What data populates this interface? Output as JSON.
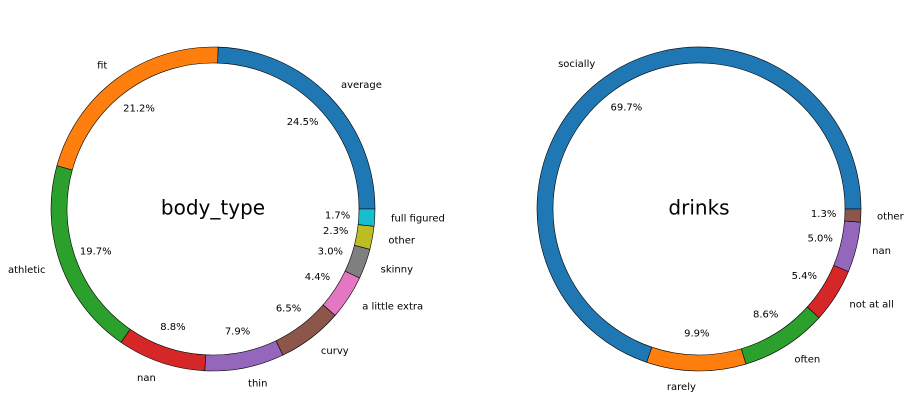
{
  "chart_data": [
    {
      "type": "pie",
      "style": "donut",
      "center_label": "body_type",
      "start_angle": 0,
      "direction": "counterclockwise",
      "slices": [
        {
          "label": "average",
          "value": 24.5,
          "pct_label": "24.5%",
          "color": "#1f77b4"
        },
        {
          "label": "fit",
          "value": 21.2,
          "pct_label": "21.2%",
          "color": "#ff7f0e"
        },
        {
          "label": "athletic",
          "value": 19.7,
          "pct_label": "19.7%",
          "color": "#2ca02c"
        },
        {
          "label": "nan",
          "value": 8.8,
          "pct_label": "8.8%",
          "color": "#d62728"
        },
        {
          "label": "thin",
          "value": 7.9,
          "pct_label": "7.9%",
          "color": "#9467bd"
        },
        {
          "label": "curvy",
          "value": 6.5,
          "pct_label": "6.5%",
          "color": "#8c564b"
        },
        {
          "label": "a little extra",
          "value": 4.4,
          "pct_label": "4.4%",
          "color": "#e377c2"
        },
        {
          "label": "skinny",
          "value": 3.0,
          "pct_label": "3.0%",
          "color": "#7f7f7f"
        },
        {
          "label": "other",
          "value": 2.3,
          "pct_label": "2.3%",
          "color": "#bcbd22"
        },
        {
          "label": "full figured",
          "value": 1.7,
          "pct_label": "1.7%",
          "color": "#17becf"
        }
      ]
    },
    {
      "type": "pie",
      "style": "donut",
      "center_label": "drinks",
      "start_angle": 0,
      "direction": "counterclockwise",
      "slices": [
        {
          "label": "socially",
          "value": 69.7,
          "pct_label": "69.7%",
          "color": "#1f77b4"
        },
        {
          "label": "rarely",
          "value": 9.9,
          "pct_label": "9.9%",
          "color": "#ff7f0e"
        },
        {
          "label": "often",
          "value": 8.6,
          "pct_label": "8.6%",
          "color": "#2ca02c"
        },
        {
          "label": "not at all",
          "value": 5.4,
          "pct_label": "5.4%",
          "color": "#d62728"
        },
        {
          "label": "nan",
          "value": 5.0,
          "pct_label": "5.0%",
          "color": "#9467bd"
        },
        {
          "label": "other",
          "value": 1.3,
          "pct_label": "1.3%",
          "color": "#8c564b"
        }
      ]
    }
  ]
}
